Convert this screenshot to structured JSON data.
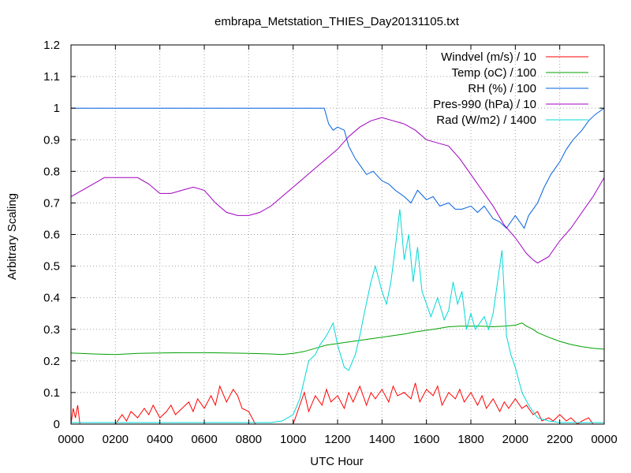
{
  "chart_data": {
    "type": "line",
    "title": "embrapa_Metstation_THIES_Day20131105.txt",
    "xlabel": "UTC Hour",
    "ylabel": "Arbitrary Scaling",
    "xlim": [
      0,
      24
    ],
    "ylim": [
      0,
      1.2
    ],
    "grid": true,
    "legend_position": "top-right",
    "x_tick_labels": [
      "0000",
      "0200",
      "0400",
      "0600",
      "0800",
      "1000",
      "1200",
      "1400",
      "1600",
      "1800",
      "2000",
      "2200",
      "0000"
    ],
    "y_tick_labels": [
      "0",
      "0.1",
      "0.2",
      "0.3",
      "0.4",
      "0.5",
      "0.6",
      "0.7",
      "0.8",
      "0.9",
      "1",
      "1.1",
      "1.2"
    ],
    "series": [
      {
        "name": "Windvel (m/s) / 10",
        "color": "#ff0000",
        "x": [
          0,
          0.1,
          0.2,
          0.3,
          0.4,
          0.5,
          1.0,
          2.0,
          2.3,
          2.5,
          2.7,
          3.0,
          3.3,
          3.5,
          3.7,
          4.0,
          4.3,
          4.5,
          4.7,
          5.0,
          5.3,
          5.5,
          5.7,
          6.0,
          6.3,
          6.5,
          6.7,
          7.0,
          7.3,
          7.5,
          7.7,
          8.0,
          8.3,
          8.5,
          8.8,
          9.0,
          9.5,
          10.0,
          10.3,
          10.5,
          10.7,
          11.0,
          11.3,
          11.5,
          11.7,
          12.0,
          12.3,
          12.5,
          12.7,
          13.0,
          13.3,
          13.5,
          13.7,
          14.0,
          14.3,
          14.5,
          14.7,
          15.0,
          15.3,
          15.5,
          15.7,
          16.0,
          16.3,
          16.5,
          16.7,
          17.0,
          17.3,
          17.5,
          17.7,
          18.0,
          18.3,
          18.5,
          18.7,
          19.0,
          19.3,
          19.5,
          19.7,
          20.0,
          20.3,
          20.5,
          20.8,
          21.0,
          21.2,
          21.5,
          21.7,
          22.0,
          22.3,
          22.5,
          22.8,
          23.0,
          23.3,
          23.5,
          24.0
        ],
        "values": [
          0.0,
          0.05,
          0.02,
          0.06,
          0.0,
          0.0,
          0.0,
          0.0,
          0.03,
          0.01,
          0.04,
          0.02,
          0.05,
          0.03,
          0.06,
          0.02,
          0.04,
          0.06,
          0.03,
          0.05,
          0.07,
          0.04,
          0.08,
          0.05,
          0.09,
          0.06,
          0.12,
          0.07,
          0.11,
          0.09,
          0.05,
          0.04,
          0.0,
          0.0,
          0.0,
          0.0,
          0.0,
          0.0,
          0.06,
          0.1,
          0.04,
          0.09,
          0.06,
          0.11,
          0.07,
          0.09,
          0.05,
          0.1,
          0.07,
          0.12,
          0.06,
          0.1,
          0.08,
          0.11,
          0.07,
          0.12,
          0.09,
          0.1,
          0.08,
          0.13,
          0.07,
          0.11,
          0.09,
          0.12,
          0.06,
          0.1,
          0.08,
          0.11,
          0.07,
          0.1,
          0.06,
          0.09,
          0.05,
          0.08,
          0.04,
          0.07,
          0.05,
          0.08,
          0.05,
          0.06,
          0.03,
          0.04,
          0.01,
          0.02,
          0.01,
          0.03,
          0.01,
          0.02,
          0.0,
          0.01,
          0.02,
          0.0,
          0.0
        ]
      },
      {
        "name": "Temp (oC) / 100",
        "color": "#00a000",
        "x": [
          0,
          1,
          2,
          3,
          4,
          5,
          6,
          7,
          8,
          9,
          9.5,
          10,
          10.5,
          11,
          11.5,
          12,
          12.5,
          13,
          13.5,
          14,
          14.5,
          15,
          15.5,
          16,
          16.5,
          17,
          17.5,
          18,
          18.5,
          19,
          19.5,
          20,
          20.3,
          20.5,
          20.8,
          21,
          21.5,
          22,
          22.5,
          23,
          23.5,
          24
        ],
        "values": [
          0.225,
          0.222,
          0.22,
          0.224,
          0.225,
          0.226,
          0.226,
          0.225,
          0.224,
          0.222,
          0.22,
          0.224,
          0.23,
          0.24,
          0.25,
          0.255,
          0.26,
          0.265,
          0.27,
          0.275,
          0.28,
          0.285,
          0.292,
          0.297,
          0.302,
          0.308,
          0.31,
          0.31,
          0.31,
          0.308,
          0.31,
          0.313,
          0.32,
          0.31,
          0.3,
          0.29,
          0.275,
          0.262,
          0.252,
          0.245,
          0.24,
          0.237
        ]
      },
      {
        "name": "RH (%) / 100",
        "color": "#0060e0",
        "x": [
          0,
          2,
          4,
          6,
          8,
          10,
          11,
          11.4,
          11.6,
          11.8,
          12,
          12.3,
          12.5,
          12.8,
          13,
          13.3,
          13.6,
          14,
          14.3,
          14.6,
          15,
          15.3,
          15.6,
          16,
          16.3,
          16.6,
          17,
          17.3,
          17.6,
          18,
          18.3,
          18.6,
          19,
          19.3,
          19.6,
          20,
          20.2,
          20.4,
          20.6,
          20.8,
          21,
          21.3,
          21.6,
          22,
          22.3,
          22.6,
          23,
          23.3,
          23.6,
          24
        ],
        "values": [
          1,
          1,
          1,
          1,
          1,
          1,
          1,
          1,
          0.95,
          0.93,
          0.94,
          0.93,
          0.88,
          0.84,
          0.82,
          0.79,
          0.8,
          0.77,
          0.76,
          0.74,
          0.72,
          0.7,
          0.74,
          0.71,
          0.72,
          0.69,
          0.7,
          0.68,
          0.68,
          0.69,
          0.67,
          0.69,
          0.65,
          0.64,
          0.62,
          0.66,
          0.64,
          0.62,
          0.66,
          0.68,
          0.7,
          0.75,
          0.79,
          0.83,
          0.87,
          0.9,
          0.93,
          0.96,
          0.98,
          1.0
        ]
      },
      {
        "name": "Pres-990 (hPa) / 10",
        "color": "#a000c0",
        "x": [
          0,
          0.5,
          1,
          1.5,
          2,
          2.5,
          3,
          3.5,
          4,
          4.5,
          5,
          5.5,
          6,
          6.5,
          7,
          7.5,
          8,
          8.5,
          9,
          9.5,
          10,
          10.5,
          11,
          11.5,
          12,
          12.5,
          13,
          13.5,
          14,
          14.5,
          15,
          15.5,
          16,
          16.5,
          17,
          17.5,
          18,
          18.5,
          19,
          19.5,
          20,
          20.5,
          20.8,
          21,
          21.5,
          22,
          22.5,
          23,
          23.5,
          24
        ],
        "values": [
          0.72,
          0.74,
          0.76,
          0.78,
          0.78,
          0.78,
          0.78,
          0.76,
          0.73,
          0.73,
          0.74,
          0.75,
          0.74,
          0.7,
          0.67,
          0.66,
          0.66,
          0.67,
          0.69,
          0.72,
          0.75,
          0.78,
          0.81,
          0.84,
          0.87,
          0.91,
          0.94,
          0.96,
          0.97,
          0.96,
          0.95,
          0.93,
          0.9,
          0.89,
          0.88,
          0.84,
          0.79,
          0.74,
          0.69,
          0.63,
          0.59,
          0.54,
          0.52,
          0.51,
          0.53,
          0.58,
          0.62,
          0.67,
          0.72,
          0.78
        ]
      },
      {
        "name": "Rad (W/m2) / 1400",
        "color": "#00d8d8",
        "x": [
          0,
          2,
          4,
          6,
          8,
          9,
          9.5,
          10,
          10.3,
          10.5,
          10.7,
          11,
          11.2,
          11.5,
          11.8,
          12,
          12.3,
          12.5,
          12.8,
          13,
          13.2,
          13.5,
          13.7,
          14,
          14.2,
          14.4,
          14.6,
          14.8,
          15,
          15.2,
          15.4,
          15.6,
          15.8,
          16,
          16.2,
          16.5,
          16.8,
          17,
          17.2,
          17.4,
          17.6,
          17.8,
          18,
          18.2,
          18.4,
          18.6,
          18.8,
          19,
          19.2,
          19.4,
          19.6,
          19.8,
          20,
          20.3,
          20.6,
          21,
          21.5,
          22,
          22.5,
          23,
          24
        ],
        "values": [
          0.005,
          0.005,
          0.005,
          0.005,
          0.005,
          0.005,
          0.01,
          0.03,
          0.08,
          0.14,
          0.2,
          0.22,
          0.25,
          0.28,
          0.32,
          0.25,
          0.18,
          0.17,
          0.22,
          0.28,
          0.35,
          0.45,
          0.5,
          0.42,
          0.38,
          0.45,
          0.56,
          0.68,
          0.52,
          0.6,
          0.45,
          0.56,
          0.42,
          0.38,
          0.34,
          0.4,
          0.33,
          0.36,
          0.45,
          0.38,
          0.42,
          0.3,
          0.35,
          0.3,
          0.32,
          0.34,
          0.3,
          0.35,
          0.45,
          0.55,
          0.28,
          0.22,
          0.18,
          0.1,
          0.06,
          0.02,
          0.01,
          0.005,
          0.005,
          0.005,
          0.005
        ]
      }
    ]
  }
}
